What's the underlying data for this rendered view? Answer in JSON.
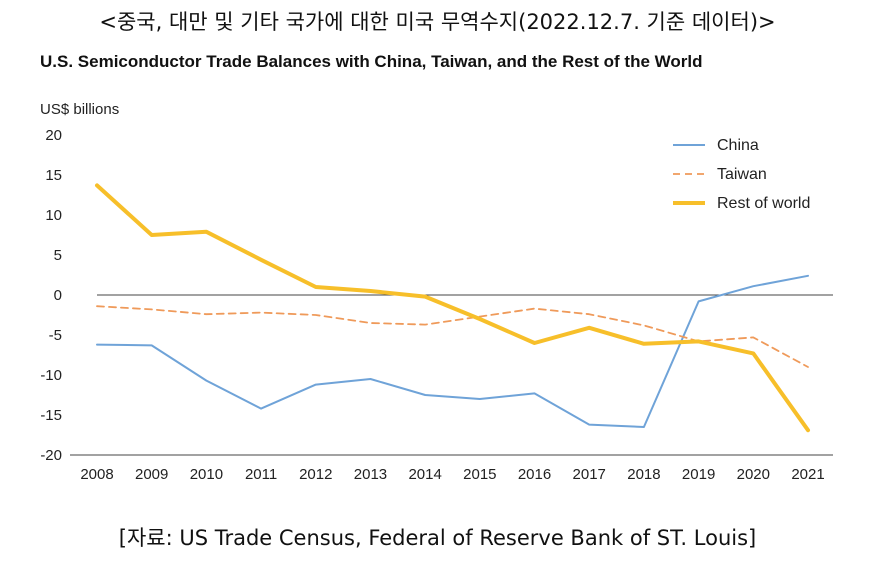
{
  "header": {
    "caption": "<중국, 대만 및 기타 국가에 대한 미국 무역수지(2022.12.7. 기준 데이터)>"
  },
  "footer": {
    "source": "[자료: US Trade Census, Federal of Reserve Bank of ST. Louis]"
  },
  "colors": {
    "china": "#6fa3d8",
    "taiwan": "#ef9a5a",
    "rest_of_world": "#f7bf2a",
    "axis": "#444444"
  },
  "chart_data": {
    "type": "line",
    "title": "U.S. Semiconductor Trade Balances with China, Taiwan, and the Rest of the World",
    "ylabel": "US$ billions",
    "xlabel": "",
    "x": [
      "2008",
      "2009",
      "2010",
      "2011",
      "2012",
      "2013",
      "2014",
      "2015",
      "2016",
      "2017",
      "2018",
      "2019",
      "2020",
      "2021"
    ],
    "ylim": [
      -20,
      20
    ],
    "yticks": [
      20,
      15,
      10,
      5,
      0,
      -5,
      -10,
      -15,
      -20
    ],
    "grid": false,
    "legend_position": "top-right",
    "series": [
      {
        "name": "China",
        "style": "solid",
        "color": "#6fa3d8",
        "values": [
          -6.2,
          -6.3,
          -10.7,
          -14.2,
          -11.2,
          -10.5,
          -12.5,
          -13.0,
          -12.3,
          -16.2,
          -16.5,
          -0.8,
          1.1,
          2.4
        ]
      },
      {
        "name": "Taiwan",
        "style": "dashed",
        "color": "#ef9a5a",
        "values": [
          -1.4,
          -1.8,
          -2.4,
          -2.2,
          -2.5,
          -3.5,
          -3.7,
          -2.7,
          -1.7,
          -2.4,
          -3.8,
          -5.8,
          -5.3,
          -9.0
        ]
      },
      {
        "name": "Rest of world",
        "style": "solid-thick",
        "color": "#f7bf2a",
        "values": [
          13.7,
          7.5,
          7.9,
          4.4,
          1.0,
          0.5,
          -0.2,
          -3.0,
          -6.0,
          -4.1,
          -6.1,
          -5.8,
          -7.3,
          -16.9
        ]
      }
    ]
  }
}
